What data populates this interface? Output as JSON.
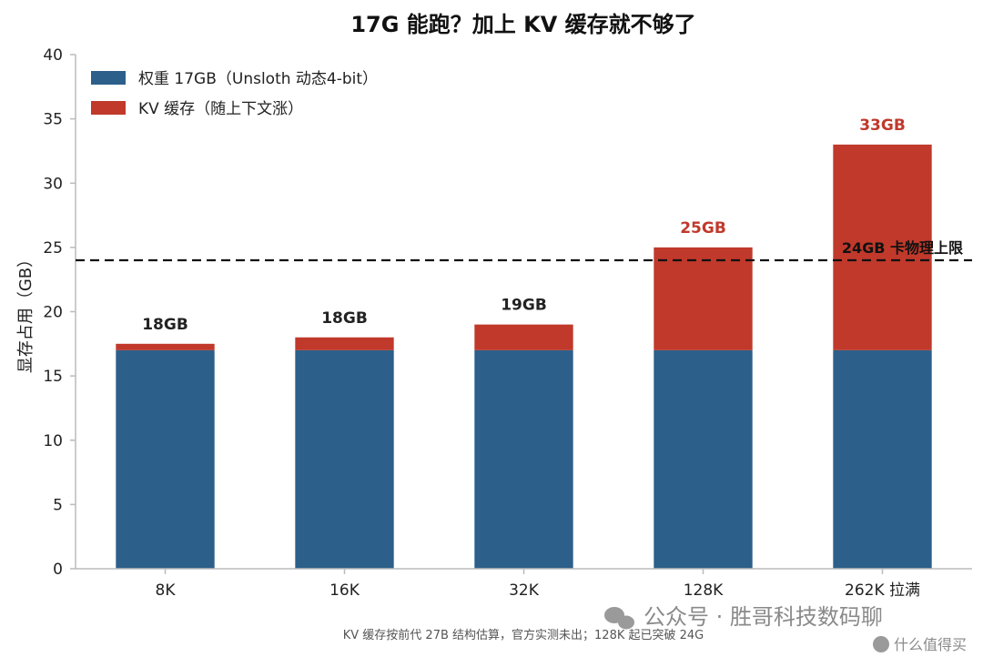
{
  "chart_data": {
    "type": "bar",
    "stacked": true,
    "title": "17G 能跑？加上 KV 缓存就不够了",
    "ylabel": "显存占用（GB）",
    "xlabel": "",
    "ylim": [
      0,
      40
    ],
    "yticks": [
      0,
      5,
      10,
      15,
      20,
      25,
      30,
      35,
      40
    ],
    "categories": [
      "8K",
      "16K",
      "32K",
      "128K",
      "262K 拉满"
    ],
    "series": [
      {
        "name": "权重 17GB（Unsloth 动态4-bit）",
        "values": [
          17,
          17,
          17,
          17,
          17
        ],
        "color": "#2c5f8a"
      },
      {
        "name": "KV 缓存（随上下文涨）",
        "values": [
          0.5,
          1,
          2,
          8,
          16
        ],
        "color": "#c0392b"
      }
    ],
    "data_labels": [
      "18GB",
      "18GB",
      "19GB",
      "25GB",
      "33GB"
    ],
    "data_label_colors": [
      "#222222",
      "#222222",
      "#222222",
      "#c0392b",
      "#c0392b"
    ],
    "threshold": {
      "value": 24,
      "label": "24GB 卡物理上限",
      "style": "dashed",
      "color": "#111111"
    },
    "legend_position": "top-left",
    "grid": false
  },
  "footnote": "KV 缓存按前代 27B 结构估算，官方实测未出；128K 起已突破 24G",
  "watermark": {
    "text": "公众号 · 胜哥科技数码聊",
    "corner_text": "什么值得买"
  }
}
